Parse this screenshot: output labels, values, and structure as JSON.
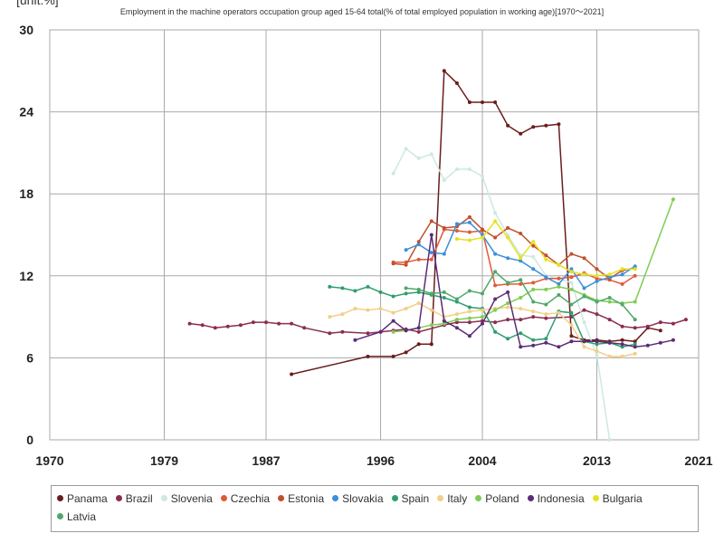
{
  "chart_data": {
    "type": "line",
    "unit_label": "[unit:%]",
    "title": "Employment in the machine operators occupation group aged 15-64 total(% of total employed population in working age)[1970～2021]",
    "xlim": [
      1970,
      2021
    ],
    "ylim": [
      0,
      30
    ],
    "x_ticks": [
      "1970",
      "1979",
      "1987",
      "1996",
      "2004",
      "2013",
      "2021"
    ],
    "y_ticks": [
      "0",
      "6",
      "12",
      "18",
      "24",
      "30"
    ],
    "grid": true,
    "legend_position": "bottom",
    "series": [
      {
        "name": "Panama",
        "color": "#6b1d1d",
        "points": [
          [
            1989,
            4.8
          ],
          [
            1995,
            6.1
          ],
          [
            1997,
            6.1
          ],
          [
            1998,
            6.4
          ],
          [
            1999,
            7.0
          ],
          [
            2000,
            7.0
          ],
          [
            2001,
            27.0
          ],
          [
            2002,
            26.1
          ],
          [
            2003,
            24.7
          ],
          [
            2004,
            24.7
          ],
          [
            2005,
            24.7
          ],
          [
            2006,
            23.0
          ],
          [
            2007,
            22.4
          ],
          [
            2008,
            22.9
          ],
          [
            2009,
            23.0
          ],
          [
            2010,
            23.1
          ],
          [
            2011,
            7.6
          ],
          [
            2012,
            7.3
          ],
          [
            2013,
            7.3
          ],
          [
            2014,
            7.2
          ],
          [
            2015,
            7.3
          ],
          [
            2016,
            7.2
          ],
          [
            2017,
            8.2
          ],
          [
            2018,
            8.0
          ]
        ]
      },
      {
        "name": "Brazil",
        "color": "#8b2d52",
        "points": [
          [
            1981,
            8.5
          ],
          [
            1982,
            8.4
          ],
          [
            1983,
            8.2
          ],
          [
            1984,
            8.3
          ],
          [
            1985,
            8.4
          ],
          [
            1986,
            8.6
          ],
          [
            1987,
            8.6
          ],
          [
            1988,
            8.5
          ],
          [
            1989,
            8.5
          ],
          [
            1990,
            8.2
          ],
          [
            1992,
            7.8
          ],
          [
            1993,
            7.9
          ],
          [
            1995,
            7.8
          ],
          [
            1996,
            7.9
          ],
          [
            1997,
            8.0
          ],
          [
            1998,
            8.1
          ],
          [
            1999,
            7.9
          ],
          [
            2001,
            8.4
          ],
          [
            2002,
            8.6
          ],
          [
            2003,
            8.6
          ],
          [
            2004,
            8.7
          ],
          [
            2005,
            8.6
          ],
          [
            2006,
            8.8
          ],
          [
            2007,
            8.8
          ],
          [
            2008,
            9.0
          ],
          [
            2009,
            8.9
          ],
          [
            2011,
            9.0
          ],
          [
            2012,
            9.5
          ],
          [
            2013,
            9.2
          ],
          [
            2014,
            8.8
          ],
          [
            2015,
            8.3
          ],
          [
            2016,
            8.2
          ],
          [
            2017,
            8.3
          ],
          [
            2018,
            8.6
          ],
          [
            2019,
            8.5
          ],
          [
            2020,
            8.8
          ]
        ]
      },
      {
        "name": "Slovenia",
        "color": "#cde9e1",
        "points": [
          [
            1997,
            19.5
          ],
          [
            1998,
            21.3
          ],
          [
            1999,
            20.6
          ],
          [
            2000,
            20.9
          ],
          [
            2001,
            19.0
          ],
          [
            2002,
            19.8
          ],
          [
            2003,
            19.8
          ],
          [
            2004,
            19.3
          ],
          [
            2005,
            16.6
          ],
          [
            2006,
            15.0
          ],
          [
            2007,
            13.5
          ],
          [
            2008,
            13.4
          ],
          [
            2009,
            12.0
          ],
          [
            2010,
            11.8
          ],
          [
            2011,
            11.5
          ],
          [
            2012,
            8.6
          ],
          [
            2013,
            6.2
          ],
          [
            2014,
            0.0
          ]
        ]
      },
      {
        "name": "Czechia",
        "color": "#e05a3a",
        "points": [
          [
            1997,
            13.0
          ],
          [
            1998,
            13.0
          ],
          [
            1999,
            13.2
          ],
          [
            2000,
            13.2
          ],
          [
            2001,
            15.4
          ],
          [
            2002,
            15.3
          ],
          [
            2003,
            15.2
          ],
          [
            2004,
            15.3
          ],
          [
            2005,
            11.3
          ],
          [
            2006,
            11.4
          ],
          [
            2007,
            11.4
          ],
          [
            2008,
            11.5
          ],
          [
            2009,
            11.8
          ],
          [
            2010,
            11.8
          ],
          [
            2011,
            11.9
          ],
          [
            2012,
            12.2
          ],
          [
            2013,
            11.8
          ],
          [
            2014,
            11.7
          ],
          [
            2015,
            11.4
          ],
          [
            2016,
            12.0
          ]
        ]
      },
      {
        "name": "Estonia",
        "color": "#c0502a",
        "points": [
          [
            1997,
            12.9
          ],
          [
            1998,
            12.8
          ],
          [
            1999,
            14.5
          ],
          [
            2000,
            16.0
          ],
          [
            2001,
            15.5
          ],
          [
            2002,
            15.6
          ],
          [
            2003,
            16.3
          ],
          [
            2004,
            15.4
          ],
          [
            2005,
            14.8
          ],
          [
            2006,
            15.5
          ],
          [
            2007,
            15.1
          ],
          [
            2008,
            14.2
          ],
          [
            2009,
            13.5
          ],
          [
            2010,
            12.8
          ],
          [
            2011,
            13.6
          ],
          [
            2012,
            13.3
          ],
          [
            2013,
            12.5
          ],
          [
            2014,
            11.8
          ],
          [
            2015,
            12.4
          ],
          [
            2016,
            12.6
          ]
        ]
      },
      {
        "name": "Slovakia",
        "color": "#3b8fd9",
        "points": [
          [
            1998,
            13.9
          ],
          [
            1999,
            14.3
          ],
          [
            2000,
            13.7
          ],
          [
            2001,
            13.6
          ],
          [
            2002,
            15.8
          ],
          [
            2003,
            15.9
          ],
          [
            2004,
            15.0
          ],
          [
            2005,
            13.6
          ],
          [
            2006,
            13.3
          ],
          [
            2007,
            13.1
          ],
          [
            2008,
            12.5
          ],
          [
            2009,
            11.9
          ],
          [
            2010,
            11.4
          ],
          [
            2011,
            12.5
          ],
          [
            2012,
            11.1
          ],
          [
            2013,
            11.6
          ],
          [
            2014,
            11.9
          ],
          [
            2015,
            12.1
          ],
          [
            2016,
            12.7
          ]
        ]
      },
      {
        "name": "Spain",
        "color": "#2e9e6e",
        "points": [
          [
            1992,
            11.2
          ],
          [
            1993,
            11.1
          ],
          [
            1994,
            10.9
          ],
          [
            1995,
            11.2
          ],
          [
            1996,
            10.8
          ],
          [
            1997,
            10.5
          ],
          [
            1998,
            10.7
          ],
          [
            1999,
            10.8
          ],
          [
            2000,
            10.6
          ],
          [
            2001,
            10.4
          ],
          [
            2002,
            10.1
          ],
          [
            2003,
            9.7
          ],
          [
            2004,
            9.6
          ],
          [
            2005,
            7.9
          ],
          [
            2006,
            7.4
          ],
          [
            2007,
            7.8
          ],
          [
            2008,
            7.3
          ],
          [
            2009,
            7.4
          ],
          [
            2010,
            9.4
          ],
          [
            2011,
            9.3
          ],
          [
            2012,
            7.2
          ],
          [
            2013,
            7.0
          ],
          [
            2014,
            7.1
          ],
          [
            2015,
            6.8
          ],
          [
            2016,
            7.0
          ]
        ]
      },
      {
        "name": "Italy",
        "color": "#f2cf88",
        "points": [
          [
            1992,
            9.0
          ],
          [
            1993,
            9.2
          ],
          [
            1994,
            9.6
          ],
          [
            1995,
            9.5
          ],
          [
            1996,
            9.6
          ],
          [
            1997,
            9.3
          ],
          [
            1998,
            9.6
          ],
          [
            1999,
            10.0
          ],
          [
            2000,
            9.5
          ],
          [
            2001,
            9.0
          ],
          [
            2002,
            9.2
          ],
          [
            2003,
            9.4
          ],
          [
            2004,
            9.5
          ],
          [
            2005,
            9.6
          ],
          [
            2006,
            9.7
          ],
          [
            2007,
            9.6
          ],
          [
            2008,
            9.4
          ],
          [
            2009,
            9.2
          ],
          [
            2010,
            9.3
          ],
          [
            2011,
            8.4
          ],
          [
            2012,
            6.8
          ],
          [
            2013,
            6.5
          ],
          [
            2014,
            6.1
          ],
          [
            2015,
            6.1
          ],
          [
            2016,
            6.3
          ]
        ]
      },
      {
        "name": "Poland",
        "color": "#7fcc52",
        "points": [
          [
            1997,
            7.9
          ],
          [
            1998,
            8.0
          ],
          [
            1999,
            8.2
          ],
          [
            2000,
            8.4
          ],
          [
            2001,
            8.5
          ],
          [
            2002,
            8.8
          ],
          [
            2003,
            8.9
          ],
          [
            2004,
            9.0
          ],
          [
            2005,
            9.5
          ],
          [
            2006,
            10.0
          ],
          [
            2007,
            10.4
          ],
          [
            2008,
            11.0
          ],
          [
            2009,
            11.0
          ],
          [
            2010,
            11.2
          ],
          [
            2011,
            11.0
          ],
          [
            2012,
            10.6
          ],
          [
            2013,
            10.2
          ],
          [
            2014,
            10.1
          ],
          [
            2015,
            10.0
          ],
          [
            2016,
            10.1
          ],
          [
            2019,
            17.6
          ]
        ]
      },
      {
        "name": "Indonesia",
        "color": "#5c2b78",
        "points": [
          [
            1994,
            7.3
          ],
          [
            1996,
            7.9
          ],
          [
            1997,
            8.7
          ],
          [
            1998,
            8.0
          ],
          [
            1999,
            8.2
          ],
          [
            2000,
            15.0
          ],
          [
            2001,
            8.7
          ],
          [
            2002,
            8.2
          ],
          [
            2003,
            7.6
          ],
          [
            2004,
            8.5
          ],
          [
            2005,
            10.3
          ],
          [
            2006,
            10.8
          ],
          [
            2007,
            6.8
          ],
          [
            2008,
            6.9
          ],
          [
            2009,
            7.1
          ],
          [
            2010,
            6.8
          ],
          [
            2011,
            7.2
          ],
          [
            2012,
            7.2
          ],
          [
            2013,
            7.2
          ],
          [
            2014,
            7.1
          ],
          [
            2015,
            7.0
          ],
          [
            2016,
            6.8
          ],
          [
            2017,
            6.9
          ],
          [
            2018,
            7.1
          ],
          [
            2019,
            7.3
          ]
        ]
      },
      {
        "name": "Bulgaria",
        "color": "#e6e020",
        "points": [
          [
            2002,
            14.7
          ],
          [
            2003,
            14.6
          ],
          [
            2004,
            14.8
          ],
          [
            2005,
            16.0
          ],
          [
            2006,
            14.8
          ],
          [
            2007,
            13.3
          ],
          [
            2008,
            14.5
          ],
          [
            2009,
            13.2
          ],
          [
            2010,
            12.8
          ],
          [
            2011,
            12.3
          ],
          [
            2012,
            12.1
          ],
          [
            2013,
            12.0
          ],
          [
            2014,
            12.1
          ],
          [
            2015,
            12.5
          ],
          [
            2016,
            12.5
          ]
        ]
      },
      {
        "name": "Latvia",
        "color": "#4fa86a",
        "points": [
          [
            1998,
            11.1
          ],
          [
            1999,
            11.0
          ],
          [
            2000,
            10.7
          ],
          [
            2001,
            10.8
          ],
          [
            2002,
            10.3
          ],
          [
            2003,
            10.9
          ],
          [
            2004,
            10.7
          ],
          [
            2005,
            12.3
          ],
          [
            2006,
            11.5
          ],
          [
            2007,
            11.7
          ],
          [
            2008,
            10.1
          ],
          [
            2009,
            9.9
          ],
          [
            2010,
            10.6
          ],
          [
            2011,
            9.9
          ],
          [
            2012,
            10.5
          ],
          [
            2013,
            10.1
          ],
          [
            2014,
            10.4
          ],
          [
            2015,
            9.9
          ],
          [
            2016,
            8.8
          ]
        ]
      }
    ]
  }
}
